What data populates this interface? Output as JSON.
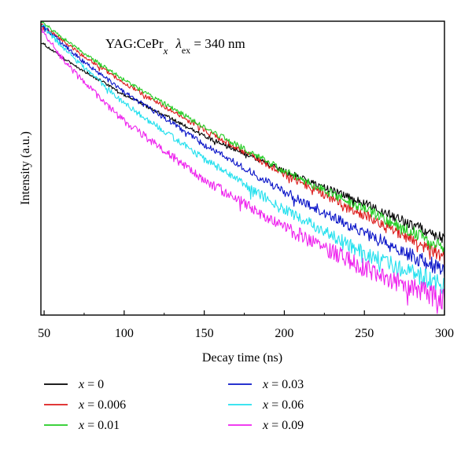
{
  "chart_data": {
    "type": "line",
    "annotation": {
      "host": "YAG:CePr",
      "host_sub": "x",
      "lambda": "λ",
      "lambda_sub": "ex",
      "rest": " = 340 nm"
    },
    "xlabel": "Decay time (ns)",
    "ylabel": "Intensity (a.u.)",
    "xlim": [
      48,
      300
    ],
    "ylim": [
      0,
      1
    ],
    "xticks": [
      50,
      100,
      150,
      200,
      250,
      300
    ],
    "xtick_labels": [
      "50",
      "100",
      "150",
      "200",
      "250",
      "300"
    ],
    "y_scale": "log (no tick labels)",
    "grid": false,
    "legend_position": "bottom, two columns",
    "series": [
      {
        "name": "x = 0",
        "var": "x",
        "eq": " = 0",
        "color": "#000000",
        "x": [
          48,
          60,
          75,
          100,
          150,
          200,
          250,
          300
        ],
        "values": [
          0.93,
          0.88,
          0.83,
          0.75,
          0.61,
          0.49,
          0.38,
          0.26
        ],
        "noise": 0.008
      },
      {
        "name": "x = 0.006",
        "var": "x",
        "eq": " = 0.006",
        "color": "#dd1c1c",
        "x": [
          48,
          60,
          75,
          100,
          150,
          200,
          250,
          300
        ],
        "values": [
          0.99,
          0.94,
          0.88,
          0.79,
          0.63,
          0.48,
          0.34,
          0.2
        ],
        "noise": 0.01
      },
      {
        "name": "x = 0.01",
        "var": "x",
        "eq": " = 0.01",
        "color": "#22cc22",
        "x": [
          48,
          60,
          75,
          100,
          150,
          200,
          250,
          300
        ],
        "values": [
          1.0,
          0.95,
          0.89,
          0.8,
          0.64,
          0.49,
          0.36,
          0.23
        ],
        "noise": 0.01
      },
      {
        "name": "x = 0.03",
        "var": "x",
        "eq": " = 0.03",
        "color": "#0a14c8",
        "x": [
          48,
          60,
          75,
          100,
          150,
          200,
          250,
          300
        ],
        "values": [
          0.99,
          0.93,
          0.86,
          0.76,
          0.58,
          0.42,
          0.28,
          0.15
        ],
        "noise": 0.012
      },
      {
        "name": "x = 0.06",
        "var": "x",
        "eq": " = 0.06",
        "color": "#22e0ee",
        "x": [
          48,
          60,
          75,
          100,
          150,
          200,
          250,
          300
        ],
        "values": [
          0.99,
          0.92,
          0.84,
          0.72,
          0.53,
          0.36,
          0.21,
          0.1
        ],
        "noise": 0.014
      },
      {
        "name": "x = 0.09",
        "var": "x",
        "eq": " = 0.09",
        "color": "#ee22ee",
        "x": [
          48,
          60,
          75,
          100,
          150,
          200,
          250,
          300
        ],
        "values": [
          0.98,
          0.88,
          0.79,
          0.66,
          0.46,
          0.3,
          0.16,
          0.05
        ],
        "noise": 0.018
      }
    ]
  }
}
